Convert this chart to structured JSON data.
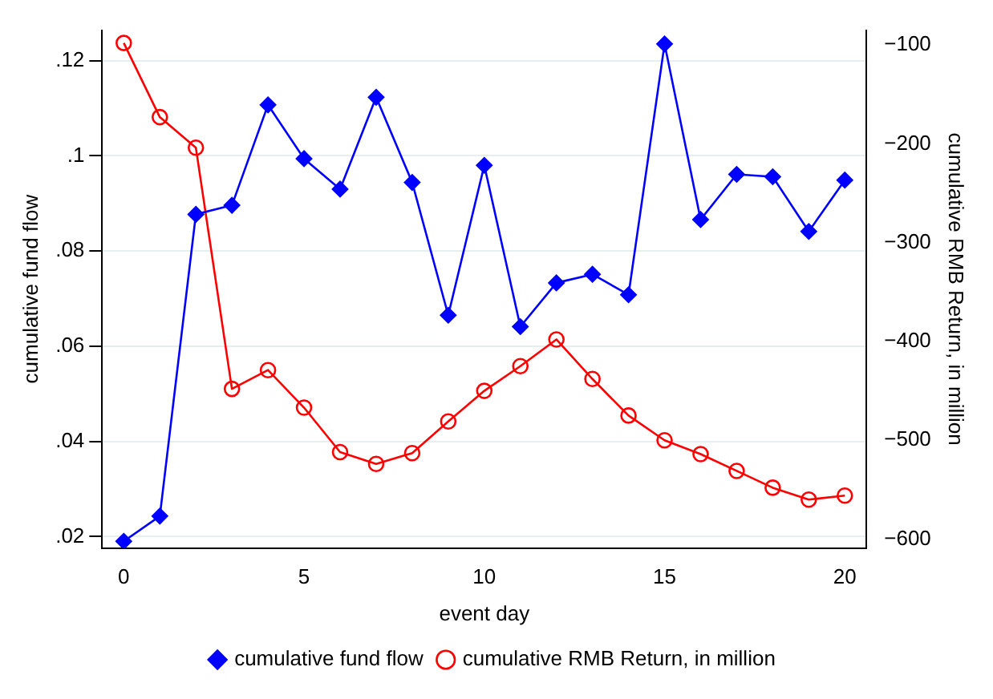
{
  "chart_data": {
    "type": "line",
    "xlabel": "event day",
    "ylabel": "cumulative fund flow",
    "y2label": "cumulative RMB Return, in million",
    "x": [
      0,
      1,
      2,
      3,
      4,
      5,
      6,
      7,
      8,
      9,
      10,
      11,
      12,
      13,
      14,
      15,
      16,
      17,
      18,
      19,
      20
    ],
    "xlim": [
      -0.6,
      20.6
    ],
    "xticks": [
      0,
      5,
      10,
      15,
      20
    ],
    "ylim": [
      0.0176,
      0.1264
    ],
    "yticks": [
      {
        "value": 0.02,
        "label": ".02"
      },
      {
        "value": 0.04,
        "label": ".04"
      },
      {
        "value": 0.06,
        "label": ".06"
      },
      {
        "value": 0.08,
        "label": ".08"
      },
      {
        "value": 0.1,
        "label": ".1"
      },
      {
        "value": 0.12,
        "label": ".12"
      }
    ],
    "y2lim": [
      -609,
      -85
    ],
    "y2ticks": [
      {
        "value": -600,
        "label": "−600"
      },
      {
        "value": -500,
        "label": "−500"
      },
      {
        "value": -400,
        "label": "−400"
      },
      {
        "value": -300,
        "label": "−300"
      },
      {
        "value": -200,
        "label": "−200"
      },
      {
        "value": -100,
        "label": "−100"
      }
    ],
    "grid": "y",
    "legend": "bottom",
    "line_style": "solid",
    "series": [
      {
        "name": "cumulative fund flow",
        "color": "#0000ff",
        "marker": "diamond",
        "values": [
          0.019,
          0.0243,
          0.0877,
          0.0896,
          0.1107,
          0.0994,
          0.093,
          0.1123,
          0.0944,
          0.0665,
          0.098,
          0.0641,
          0.0733,
          0.0751,
          0.0708,
          0.1235,
          0.0866,
          0.0961,
          0.0956,
          0.0841,
          0.0949
        ]
      },
      {
        "name": "cumulative RMB Return, in million",
        "color": "#ff0000",
        "marker": "circle",
        "axis": "y2",
        "values": [
          -98,
          -173,
          -204,
          -448,
          -429,
          -467,
          -512,
          -524,
          -513,
          -481,
          -450,
          -425,
          -398,
          -438,
          -475,
          -500,
          -514,
          -531,
          -548,
          -560,
          -556
        ]
      }
    ]
  }
}
